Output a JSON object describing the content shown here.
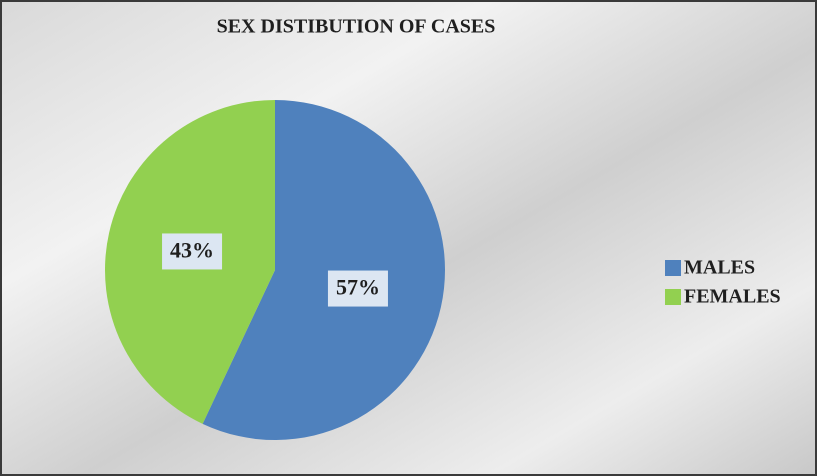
{
  "chart_data": {
    "type": "pie",
    "title": "SEX DISTIBUTION OF CASES",
    "categories": [
      "MALES",
      "FEMALES"
    ],
    "values": [
      57,
      43
    ],
    "value_labels": [
      "57%",
      "43%"
    ],
    "colors": [
      "#4f81bd",
      "#92d050"
    ],
    "legend": "right"
  }
}
